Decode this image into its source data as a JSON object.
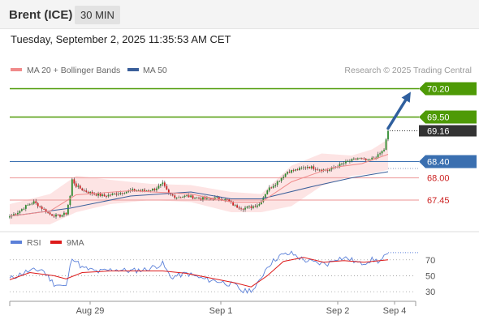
{
  "header": {
    "instrument": "Brent (ICE)",
    "interval": "30 MIN",
    "datetime": "Tuesday, September 2, 2025 11:35:53 AM CET"
  },
  "legend": {
    "ma20": {
      "label": "MA 20 + Bollinger Bands",
      "color": "#f08a8a"
    },
    "ma50": {
      "label": "MA 50",
      "color": "#3a5f9a"
    }
  },
  "copyright": "Research © 2025 Trading Central",
  "colors": {
    "resistance": "#4e9a06",
    "pivot": "#3a6fb0",
    "support": "#f0a8a8",
    "last_price": "#333333",
    "candle_up": "#2e8b2e",
    "candle_down": "#cc2222",
    "arrow": "#2f5f9e"
  },
  "chart_data": [
    {
      "type": "candlestick",
      "ylim": [
        66.75,
        70.55
      ],
      "x_ticks": [
        "Aug 29",
        "Sep 1",
        "Sep 2",
        "Sep 4"
      ],
      "levels": [
        {
          "value": 70.2,
          "label": "70.20",
          "kind": "resistance"
        },
        {
          "value": 69.5,
          "label": "69.50",
          "kind": "resistance"
        },
        {
          "value": 69.16,
          "label": "69.16",
          "kind": "last"
        },
        {
          "value": 68.4,
          "label": "68.40",
          "kind": "pivot"
        },
        {
          "value": 68.0,
          "label": "68.00",
          "kind": "support"
        },
        {
          "value": 67.45,
          "label": "67.45",
          "kind": "support"
        }
      ],
      "anchors": [
        [
          0,
          67.05
        ],
        [
          4,
          67.15
        ],
        [
          8,
          67.3
        ],
        [
          12,
          67.4
        ],
        [
          16,
          67.25
        ],
        [
          20,
          67.1
        ],
        [
          24,
          67.05
        ],
        [
          28,
          67.12
        ],
        [
          30,
          67.55
        ],
        [
          31,
          67.95
        ],
        [
          33,
          67.8
        ],
        [
          37,
          67.68
        ],
        [
          42,
          67.6
        ],
        [
          47,
          67.55
        ],
        [
          52,
          67.6
        ],
        [
          57,
          67.65
        ],
        [
          62,
          67.7
        ],
        [
          67,
          67.68
        ],
        [
          72,
          67.72
        ],
        [
          76,
          67.85
        ],
        [
          79,
          67.6
        ],
        [
          83,
          67.52
        ],
        [
          88,
          67.55
        ],
        [
          93,
          67.5
        ],
        [
          98,
          67.48
        ],
        [
          103,
          67.5
        ],
        [
          108,
          67.45
        ],
        [
          112,
          67.3
        ],
        [
          116,
          67.25
        ],
        [
          120,
          67.28
        ],
        [
          124,
          67.35
        ],
        [
          128,
          67.7
        ],
        [
          133,
          67.9
        ],
        [
          138,
          68.15
        ],
        [
          143,
          68.2
        ],
        [
          148,
          68.28
        ],
        [
          153,
          68.22
        ],
        [
          158,
          68.18
        ],
        [
          163,
          68.3
        ],
        [
          168,
          68.4
        ],
        [
          173,
          68.48
        ],
        [
          178,
          68.42
        ],
        [
          183,
          68.55
        ],
        [
          186,
          68.7
        ],
        [
          188,
          69.16
        ]
      ],
      "arrow": {
        "from": [
          188,
          69.22
        ],
        "to": [
          198,
          70.02
        ]
      },
      "ma50": [
        [
          0,
          67.05
        ],
        [
          30,
          67.25
        ],
        [
          60,
          67.55
        ],
        [
          90,
          67.65
        ],
        [
          110,
          67.48
        ],
        [
          125,
          67.48
        ],
        [
          150,
          67.78
        ],
        [
          170,
          68.0
        ],
        [
          188,
          68.15
        ]
      ],
      "ma20": [
        [
          0,
          67.05
        ],
        [
          20,
          67.18
        ],
        [
          33,
          67.58
        ],
        [
          60,
          67.68
        ],
        [
          90,
          67.6
        ],
        [
          110,
          67.4
        ],
        [
          125,
          67.4
        ],
        [
          140,
          67.9
        ],
        [
          160,
          68.25
        ],
        [
          175,
          68.35
        ],
        [
          188,
          68.58
        ]
      ],
      "bb_upper": [
        [
          0,
          67.35
        ],
        [
          20,
          67.6
        ],
        [
          33,
          68.05
        ],
        [
          50,
          67.95
        ],
        [
          70,
          67.85
        ],
        [
          90,
          67.82
        ],
        [
          110,
          67.65
        ],
        [
          125,
          67.6
        ],
        [
          140,
          68.3
        ],
        [
          155,
          68.6
        ],
        [
          170,
          68.55
        ],
        [
          180,
          68.7
        ],
        [
          188,
          68.95
        ]
      ],
      "bb_lower": [
        [
          0,
          66.85
        ],
        [
          20,
          66.85
        ],
        [
          33,
          67.15
        ],
        [
          50,
          67.35
        ],
        [
          70,
          67.45
        ],
        [
          90,
          67.4
        ],
        [
          110,
          67.15
        ],
        [
          125,
          67.15
        ],
        [
          140,
          67.3
        ],
        [
          155,
          67.8
        ],
        [
          170,
          68.05
        ],
        [
          180,
          68.1
        ],
        [
          188,
          68.2
        ]
      ]
    },
    {
      "type": "line",
      "title": "",
      "legend": [
        {
          "label": "RSI",
          "color": "#5b80d9"
        },
        {
          "label": "9MA",
          "color": "#dd1a1a"
        }
      ],
      "ylim": [
        22,
        86
      ],
      "y_ticks": [
        70,
        50,
        30
      ],
      "rsi": [
        [
          0,
          46
        ],
        [
          8,
          55
        ],
        [
          16,
          58
        ],
        [
          22,
          40
        ],
        [
          28,
          36
        ],
        [
          31,
          74
        ],
        [
          36,
          60
        ],
        [
          44,
          55
        ],
        [
          52,
          58
        ],
        [
          60,
          56
        ],
        [
          68,
          58
        ],
        [
          76,
          65
        ],
        [
          80,
          48
        ],
        [
          88,
          53
        ],
        [
          96,
          46
        ],
        [
          104,
          43
        ],
        [
          112,
          38
        ],
        [
          116,
          30
        ],
        [
          122,
          34
        ],
        [
          128,
          62
        ],
        [
          134,
          75
        ],
        [
          140,
          78
        ],
        [
          146,
          70
        ],
        [
          152,
          66
        ],
        [
          158,
          65
        ],
        [
          162,
          72
        ],
        [
          168,
          72
        ],
        [
          174,
          65
        ],
        [
          180,
          70
        ],
        [
          184,
          68
        ],
        [
          188,
          78
        ]
      ],
      "ma9": [
        [
          0,
          45
        ],
        [
          10,
          54
        ],
        [
          22,
          50
        ],
        [
          28,
          46
        ],
        [
          36,
          54
        ],
        [
          50,
          56
        ],
        [
          62,
          56
        ],
        [
          76,
          56
        ],
        [
          88,
          53
        ],
        [
          100,
          47
        ],
        [
          112,
          41
        ],
        [
          120,
          36
        ],
        [
          128,
          50
        ],
        [
          136,
          68
        ],
        [
          146,
          73
        ],
        [
          156,
          67
        ],
        [
          166,
          69
        ],
        [
          176,
          67
        ],
        [
          188,
          70
        ]
      ]
    }
  ]
}
